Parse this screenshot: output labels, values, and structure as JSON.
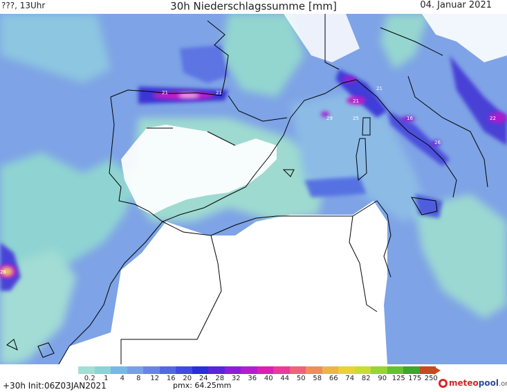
{
  "header": {
    "left": "???, 13Uhr",
    "title": "30h Niederschlagssumme [mm]",
    "right": "04. Januar 2021"
  },
  "legend": {
    "labels": [
      "0.2",
      "1",
      "4",
      "8",
      "12",
      "16",
      "20",
      "24",
      "28",
      "32",
      "36",
      "40",
      "44",
      "50",
      "58",
      "66",
      "74",
      "82",
      "90",
      "125",
      "175",
      "250"
    ],
    "colors": [
      "#a6ddd4",
      "#8ed2d6",
      "#7ab8e4",
      "#7a9eec",
      "#6a83ea",
      "#5468e6",
      "#3f4be0",
      "#2a2ed8",
      "#5a24d8",
      "#8a1ed8",
      "#b51cd2",
      "#d91fb8",
      "#e83a9a",
      "#f0627c",
      "#f08c5e",
      "#efb445",
      "#e8d23a",
      "#c9dc36",
      "#98d432",
      "#64c22e",
      "#3aa828",
      "#c84a1d"
    ]
  },
  "footer": {
    "run": "+30h  Init:06Z03JAN2021",
    "pmx": "pmx: 64.25mm"
  },
  "map": {
    "max_values": [
      "21",
      "21",
      "21",
      "29",
      "25",
      "16",
      "22",
      "26",
      "26",
      "21"
    ]
  },
  "brand": {
    "part1": "meteo",
    "part2": "pool",
    "part3": ".org"
  }
}
